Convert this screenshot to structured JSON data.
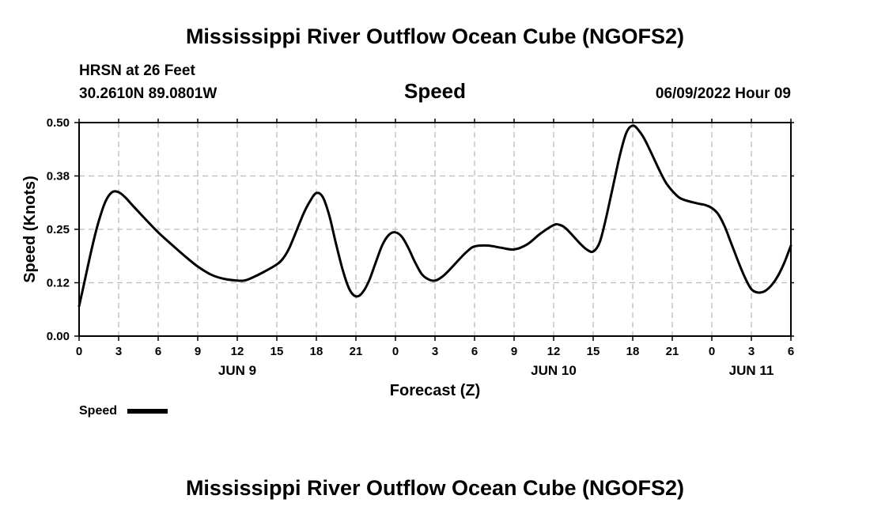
{
  "page": {
    "title_top": "Mississippi River Outflow Ocean Cube (NGOFS2)",
    "title_bottom": "Mississippi River Outflow Ocean Cube (NGOFS2)",
    "station": "HRSN at 26 Feet",
    "location": "30.2610N  89.0801W",
    "subtitle": "Speed",
    "datetime": "06/09/2022 Hour 09"
  },
  "chart_data": {
    "type": "line",
    "title": "Speed",
    "xlabel": "Forecast (Z)",
    "ylabel": "Speed (Knots)",
    "x_range_hours": [
      0,
      54
    ],
    "ylim": [
      0,
      0.5
    ],
    "y_ticks": [
      {
        "value": 0.0,
        "label": "0.00"
      },
      {
        "value": 0.125,
        "label": "0.12"
      },
      {
        "value": 0.25,
        "label": "0.25"
      },
      {
        "value": 0.375,
        "label": "0.38"
      },
      {
        "value": 0.5,
        "label": "0.50"
      }
    ],
    "x_ticks": [
      {
        "hour": 0,
        "label": "0"
      },
      {
        "hour": 3,
        "label": "3"
      },
      {
        "hour": 6,
        "label": "6"
      },
      {
        "hour": 9,
        "label": "9"
      },
      {
        "hour": 12,
        "label": "12"
      },
      {
        "hour": 15,
        "label": "15"
      },
      {
        "hour": 18,
        "label": "18"
      },
      {
        "hour": 21,
        "label": "21"
      },
      {
        "hour": 24,
        "label": "0"
      },
      {
        "hour": 27,
        "label": "3"
      },
      {
        "hour": 30,
        "label": "6"
      },
      {
        "hour": 33,
        "label": "9"
      },
      {
        "hour": 36,
        "label": "12"
      },
      {
        "hour": 39,
        "label": "15"
      },
      {
        "hour": 42,
        "label": "18"
      },
      {
        "hour": 45,
        "label": "21"
      },
      {
        "hour": 48,
        "label": "0"
      },
      {
        "hour": 51,
        "label": "3"
      },
      {
        "hour": 54,
        "label": "6"
      }
    ],
    "date_labels": [
      {
        "hour": 12,
        "label": "JUN 9"
      },
      {
        "hour": 36,
        "label": "JUN 10"
      },
      {
        "hour": 51,
        "label": "JUN 11"
      }
    ],
    "grid": true,
    "legend": {
      "placement": "bottom-left",
      "label": "Speed"
    },
    "series": [
      {
        "name": "Speed",
        "color": "#000000",
        "points": [
          [
            0.0,
            0.07
          ],
          [
            0.5,
            0.14
          ],
          [
            1.0,
            0.21
          ],
          [
            1.5,
            0.27
          ],
          [
            2.0,
            0.315
          ],
          [
            2.5,
            0.337
          ],
          [
            3.0,
            0.337
          ],
          [
            3.5,
            0.325
          ],
          [
            4.0,
            0.308
          ],
          [
            5.0,
            0.275
          ],
          [
            6.0,
            0.243
          ],
          [
            7.0,
            0.215
          ],
          [
            8.0,
            0.188
          ],
          [
            9.0,
            0.163
          ],
          [
            10.0,
            0.144
          ],
          [
            11.0,
            0.134
          ],
          [
            12.0,
            0.13
          ],
          [
            12.5,
            0.13
          ],
          [
            13.0,
            0.135
          ],
          [
            14.0,
            0.15
          ],
          [
            15.0,
            0.168
          ],
          [
            15.5,
            0.183
          ],
          [
            16.0,
            0.21
          ],
          [
            17.0,
            0.285
          ],
          [
            17.5,
            0.315
          ],
          [
            18.0,
            0.335
          ],
          [
            18.5,
            0.325
          ],
          [
            19.0,
            0.28
          ],
          [
            19.5,
            0.215
          ],
          [
            20.0,
            0.155
          ],
          [
            20.5,
            0.11
          ],
          [
            21.0,
            0.093
          ],
          [
            21.5,
            0.102
          ],
          [
            22.0,
            0.13
          ],
          [
            22.5,
            0.172
          ],
          [
            23.0,
            0.213
          ],
          [
            23.5,
            0.237
          ],
          [
            24.0,
            0.243
          ],
          [
            24.5,
            0.232
          ],
          [
            25.0,
            0.205
          ],
          [
            25.5,
            0.172
          ],
          [
            26.0,
            0.145
          ],
          [
            26.5,
            0.133
          ],
          [
            27.0,
            0.13
          ],
          [
            27.5,
            0.138
          ],
          [
            28.0,
            0.152
          ],
          [
            29.0,
            0.185
          ],
          [
            29.5,
            0.2
          ],
          [
            30.0,
            0.21
          ],
          [
            31.0,
            0.212
          ],
          [
            32.0,
            0.207
          ],
          [
            33.0,
            0.203
          ],
          [
            34.0,
            0.215
          ],
          [
            35.0,
            0.24
          ],
          [
            36.0,
            0.26
          ],
          [
            36.5,
            0.26
          ],
          [
            37.0,
            0.25
          ],
          [
            38.0,
            0.217
          ],
          [
            38.5,
            0.203
          ],
          [
            39.0,
            0.198
          ],
          [
            39.5,
            0.22
          ],
          [
            40.0,
            0.28
          ],
          [
            40.5,
            0.35
          ],
          [
            41.0,
            0.42
          ],
          [
            41.5,
            0.475
          ],
          [
            42.0,
            0.493
          ],
          [
            42.5,
            0.48
          ],
          [
            43.0,
            0.455
          ],
          [
            44.0,
            0.39
          ],
          [
            44.5,
            0.36
          ],
          [
            45.0,
            0.34
          ],
          [
            45.5,
            0.325
          ],
          [
            46.0,
            0.318
          ],
          [
            47.0,
            0.31
          ],
          [
            47.5,
            0.307
          ],
          [
            48.0,
            0.3
          ],
          [
            48.5,
            0.285
          ],
          [
            49.0,
            0.255
          ],
          [
            49.5,
            0.215
          ],
          [
            50.0,
            0.175
          ],
          [
            50.5,
            0.138
          ],
          [
            51.0,
            0.11
          ],
          [
            51.5,
            0.102
          ],
          [
            52.0,
            0.105
          ],
          [
            52.5,
            0.118
          ],
          [
            53.0,
            0.14
          ],
          [
            53.5,
            0.172
          ],
          [
            54.0,
            0.212
          ]
        ]
      }
    ]
  }
}
